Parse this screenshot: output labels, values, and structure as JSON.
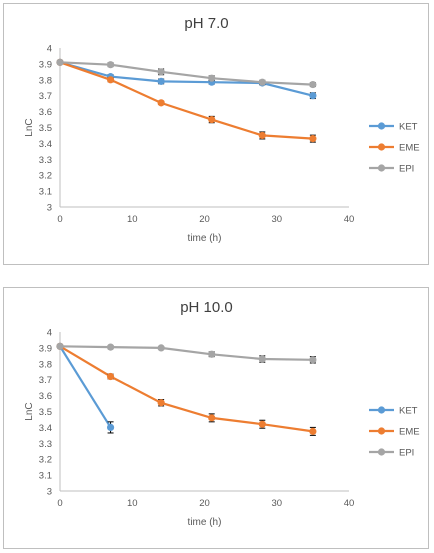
{
  "chart_data": [
    {
      "type": "line",
      "title": "pH 7.0",
      "xlabel": "time (h)",
      "ylabel": "LnC",
      "xlim": [
        0,
        40
      ],
      "ylim": [
        3,
        4
      ],
      "x_ticks": [
        "0",
        "10",
        "20",
        "30",
        "40"
      ],
      "y_ticks": [
        "3",
        "3.1",
        "3.2",
        "3.3",
        "3.4",
        "3.5",
        "3.6",
        "3.7",
        "3.8",
        "3.9",
        "4"
      ],
      "legend_position": "right",
      "series": [
        {
          "name": "KET",
          "color": "#5b9bd5",
          "x": [
            0,
            7,
            14,
            21,
            28,
            35
          ],
          "y": [
            3.91,
            3.82,
            3.79,
            3.785,
            3.78,
            3.7
          ],
          "err": [
            0.005,
            0.012,
            0.015,
            0.012,
            0.012,
            0.018
          ]
        },
        {
          "name": "EME",
          "color": "#ed7d31",
          "x": [
            0,
            7,
            14,
            21,
            28,
            35
          ],
          "y": [
            3.91,
            3.8,
            3.655,
            3.55,
            3.45,
            3.43
          ],
          "err": [
            0.005,
            0.012,
            0.01,
            0.02,
            0.022,
            0.022
          ]
        },
        {
          "name": "EPI",
          "color": "#a5a5a5",
          "x": [
            0,
            7,
            14,
            21,
            28,
            35
          ],
          "y": [
            3.91,
            3.895,
            3.85,
            3.81,
            3.785,
            3.77
          ],
          "err": [
            0.005,
            0.012,
            0.018,
            0.015,
            0.012,
            0.012
          ]
        }
      ]
    },
    {
      "type": "line",
      "title": "pH 10.0",
      "xlabel": "time (h)",
      "ylabel": "LnC",
      "xlim": [
        0,
        40
      ],
      "ylim": [
        3,
        4
      ],
      "x_ticks": [
        "0",
        "10",
        "20",
        "30",
        "40"
      ],
      "y_ticks": [
        "3",
        "3.1",
        "3.2",
        "3.3",
        "3.4",
        "3.5",
        "3.6",
        "3.7",
        "3.8",
        "3.9",
        "4"
      ],
      "legend_position": "right",
      "series": [
        {
          "name": "KET",
          "color": "#5b9bd5",
          "x": [
            0,
            7
          ],
          "y": [
            3.91,
            3.4
          ],
          "err": [
            0.005,
            0.035
          ]
        },
        {
          "name": "EME",
          "color": "#ed7d31",
          "x": [
            0,
            7,
            14,
            21,
            28,
            35
          ],
          "y": [
            3.91,
            3.72,
            3.555,
            3.46,
            3.42,
            3.375
          ],
          "err": [
            0.005,
            0.015,
            0.02,
            0.025,
            0.025,
            0.025
          ]
        },
        {
          "name": "EPI",
          "color": "#a5a5a5",
          "x": [
            0,
            7,
            14,
            21,
            28,
            35
          ],
          "y": [
            3.91,
            3.905,
            3.9,
            3.86,
            3.83,
            3.825
          ],
          "err": [
            0.005,
            0.01,
            0.008,
            0.015,
            0.02,
            0.02
          ]
        }
      ]
    }
  ]
}
